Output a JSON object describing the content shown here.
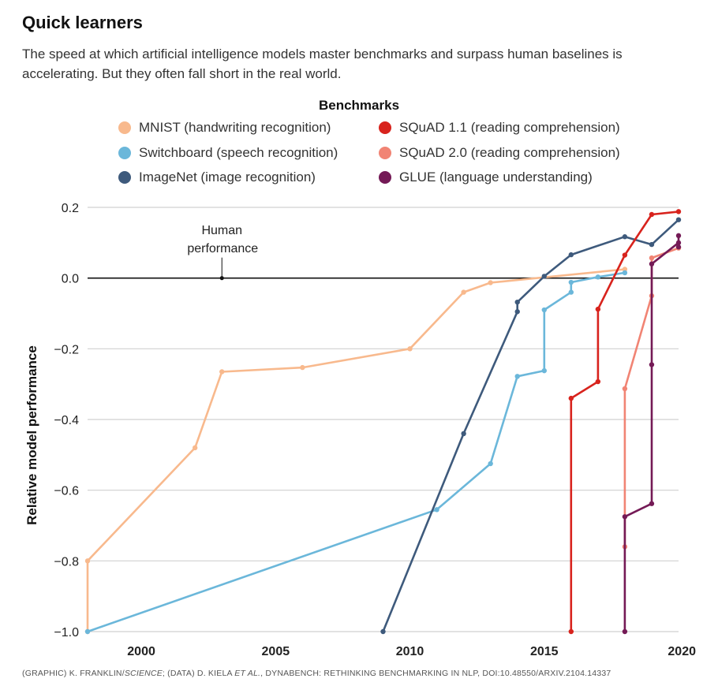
{
  "header": {
    "title": "Quick learners",
    "subtitle": "The speed at which artificial intelligence models master benchmarks and surpass human baselines is accelerating. But they often fall short in the real world."
  },
  "legend": {
    "title": "Benchmarks"
  },
  "footer": {
    "source_a": "(GRAPHIC) K. FRANKLIN/",
    "source_b": "SCIENCE",
    "source_c": "; (DATA) D. KIELA ",
    "source_d": "ET AL.",
    "source_e": ", DYNABENCH: RETHINKING BENCHMARKING IN NLP, DOI:10.48550/ARXIV.2104.14337"
  },
  "chart_data": {
    "type": "line",
    "title": "",
    "xlabel": "",
    "ylabel": "Relative model performance",
    "xlim": [
      1998,
      2020
    ],
    "ylim": [
      -1.0,
      0.2
    ],
    "xticks": [
      2000,
      2005,
      2010,
      2015,
      2020
    ],
    "yticks": [
      0.2,
      0.0,
      -0.2,
      -0.4,
      -0.6,
      -0.8,
      -1.0
    ],
    "ytick_labels": [
      "0.2",
      "0.0",
      "−0.2",
      "−0.4",
      "−0.6",
      "−0.8",
      "−1.0"
    ],
    "grid": "horizontal",
    "legend_placement": "top",
    "annotation": {
      "line1": "Human",
      "line2": "performance",
      "x": 2003,
      "y": 0.0
    },
    "series": [
      {
        "name": "MNIST (handwriting recognition)",
        "color": "#f8b98d",
        "points": [
          [
            1998,
            -1.0
          ],
          [
            1998,
            -0.8
          ],
          [
            2002,
            -0.48
          ],
          [
            2003,
            -0.265
          ],
          [
            2006,
            -0.253
          ],
          [
            2010,
            -0.2
          ],
          [
            2012,
            -0.04
          ],
          [
            2013,
            -0.013
          ],
          [
            2018,
            0.025
          ]
        ]
      },
      {
        "name": "Switchboard (speech recognition)",
        "color": "#6bb7da",
        "points": [
          [
            1998,
            -1.0
          ],
          [
            2011,
            -0.655
          ],
          [
            2013,
            -0.525
          ],
          [
            2014,
            -0.278
          ],
          [
            2015,
            -0.262
          ],
          [
            2015,
            -0.09
          ],
          [
            2016,
            -0.04
          ],
          [
            2016,
            -0.012
          ],
          [
            2017,
            0.003
          ],
          [
            2018,
            0.015
          ]
        ]
      },
      {
        "name": "ImageNet (image recognition)",
        "color": "#3e5a7c",
        "points": [
          [
            2009,
            -1.0
          ],
          [
            2012,
            -0.44
          ],
          [
            2014,
            -0.095
          ],
          [
            2014,
            -0.068
          ],
          [
            2015,
            0.005
          ],
          [
            2016,
            0.066
          ],
          [
            2018,
            0.117
          ],
          [
            2019,
            0.095
          ],
          [
            2020,
            0.165
          ]
        ]
      },
      {
        "name": "SQuAD 1.1 (reading comprehension)",
        "color": "#d8231d",
        "points": [
          [
            2016,
            -1.0
          ],
          [
            2016,
            -0.34
          ],
          [
            2017,
            -0.293
          ],
          [
            2017,
            -0.088
          ],
          [
            2018,
            0.065
          ],
          [
            2019,
            0.18
          ],
          [
            2020,
            0.188
          ]
        ]
      },
      {
        "name": "SQuAD 2.0 (reading comprehension)",
        "color": "#f18474",
        "points": [
          [
            2018,
            -0.76
          ],
          [
            2018,
            -0.313
          ],
          [
            2019,
            -0.05
          ],
          [
            2019,
            0.057
          ],
          [
            2020,
            0.085
          ]
        ]
      },
      {
        "name": "GLUE (language understanding)",
        "color": "#741a56",
        "points": [
          [
            2018,
            -1.0
          ],
          [
            2018,
            -0.675
          ],
          [
            2019,
            -0.638
          ],
          [
            2019,
            -0.245
          ],
          [
            2019,
            0.04
          ],
          [
            2020,
            0.1
          ],
          [
            2020,
            0.12
          ],
          [
            2020,
            0.088
          ]
        ]
      }
    ]
  }
}
